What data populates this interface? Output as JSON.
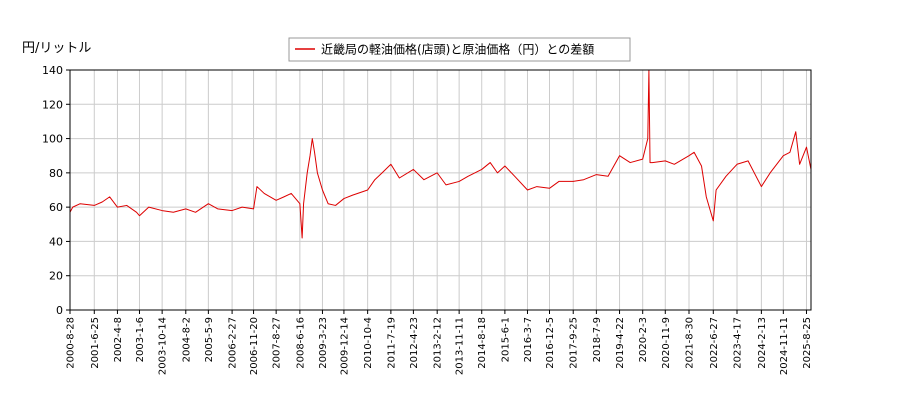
{
  "chart_data": {
    "type": "line",
    "ylabel": "円/リットル",
    "ylim": [
      0,
      140
    ],
    "yticks": [
      0,
      20,
      40,
      60,
      80,
      100,
      120,
      140
    ],
    "xlim": [
      "2000-08-28",
      "2025-10-20"
    ],
    "xticks": [
      "2000-8-28",
      "2001-6-25",
      "2002-4-8",
      "2003-1-6",
      "2003-10-14",
      "2004-8-2",
      "2005-5-9",
      "2006-2-27",
      "2006-11-20",
      "2007-8-27",
      "2008-6-16",
      "2009-3-23",
      "2009-12-14",
      "2010-10-4",
      "2011-7-19",
      "2012-4-23",
      "2013-2-12",
      "2013-11-11",
      "2014-8-18",
      "2015-6-1",
      "2016-3-7",
      "2016-12-5",
      "2017-9-25",
      "2018-7-9",
      "2019-4-22",
      "2020-2-3",
      "2020-11-9",
      "2021-8-30",
      "2022-6-27",
      "2023-4-17",
      "2024-2-13",
      "2024-11-11",
      "2025-8-25"
    ],
    "grid": true,
    "legend": "top-center",
    "color": "#dd0000",
    "series": [
      {
        "name": "近畿局の軽油価格(店頭)と原油価格（円）との差額",
        "x": [
          "2000-08-28",
          "2000-10-01",
          "2001-01-01",
          "2001-06-25",
          "2001-10-01",
          "2002-01-01",
          "2002-04-08",
          "2002-08-01",
          "2002-12-01",
          "2003-01-06",
          "2003-05-01",
          "2003-10-14",
          "2004-03-01",
          "2004-08-02",
          "2004-12-01",
          "2005-05-09",
          "2005-09-01",
          "2006-02-27",
          "2006-07-01",
          "2006-11-20",
          "2007-01-01",
          "2007-04-01",
          "2007-08-27",
          "2007-12-01",
          "2008-03-01",
          "2008-06-16",
          "2008-07-14",
          "2008-08-01",
          "2008-09-15",
          "2008-10-20",
          "2008-11-17",
          "2008-12-15",
          "2009-01-19",
          "2009-03-23",
          "2009-06-01",
          "2009-09-01",
          "2009-12-14",
          "2010-04-01",
          "2010-10-04",
          "2011-01-01",
          "2011-04-01",
          "2011-07-19",
          "2011-11-01",
          "2012-04-23",
          "2012-09-01",
          "2013-02-12",
          "2013-06-01",
          "2013-11-11",
          "2014-03-01",
          "2014-08-18",
          "2014-12-01",
          "2015-03-01",
          "2015-06-01",
          "2015-10-01",
          "2016-03-07",
          "2016-07-01",
          "2016-12-05",
          "2017-04-01",
          "2017-09-25",
          "2018-02-01",
          "2018-07-09",
          "2018-12-01",
          "2019-04-22",
          "2019-09-01",
          "2020-02-03",
          "2020-04-06",
          "2020-04-20",
          "2020-05-04",
          "2020-06-01",
          "2020-11-09",
          "2021-03-01",
          "2021-08-30",
          "2021-11-01",
          "2022-02-01",
          "2022-04-01",
          "2022-06-27",
          "2022-08-01",
          "2022-12-01",
          "2023-04-17",
          "2023-09-01",
          "2024-02-13",
          "2024-06-01",
          "2024-11-11",
          "2025-02-01",
          "2025-04-14",
          "2025-06-01",
          "2025-08-25",
          "2025-10-20"
        ],
        "values": [
          57,
          60,
          62,
          61,
          63,
          66,
          60,
          61,
          57,
          55,
          60,
          58,
          57,
          59,
          57,
          62,
          59,
          58,
          60,
          59,
          72,
          68,
          64,
          66,
          68,
          62,
          42,
          62,
          80,
          90,
          100,
          92,
          80,
          70,
          62,
          61,
          65,
          67,
          70,
          76,
          80,
          85,
          77,
          82,
          76,
          80,
          73,
          75,
          78,
          82,
          86,
          80,
          84,
          78,
          70,
          72,
          71,
          75,
          75,
          76,
          79,
          78,
          90,
          86,
          88,
          100,
          140,
          86,
          86,
          87,
          85,
          90,
          92,
          84,
          66,
          52,
          70,
          78,
          85,
          87,
          72,
          80,
          90,
          92,
          104,
          85,
          95,
          82
        ]
      }
    ]
  }
}
